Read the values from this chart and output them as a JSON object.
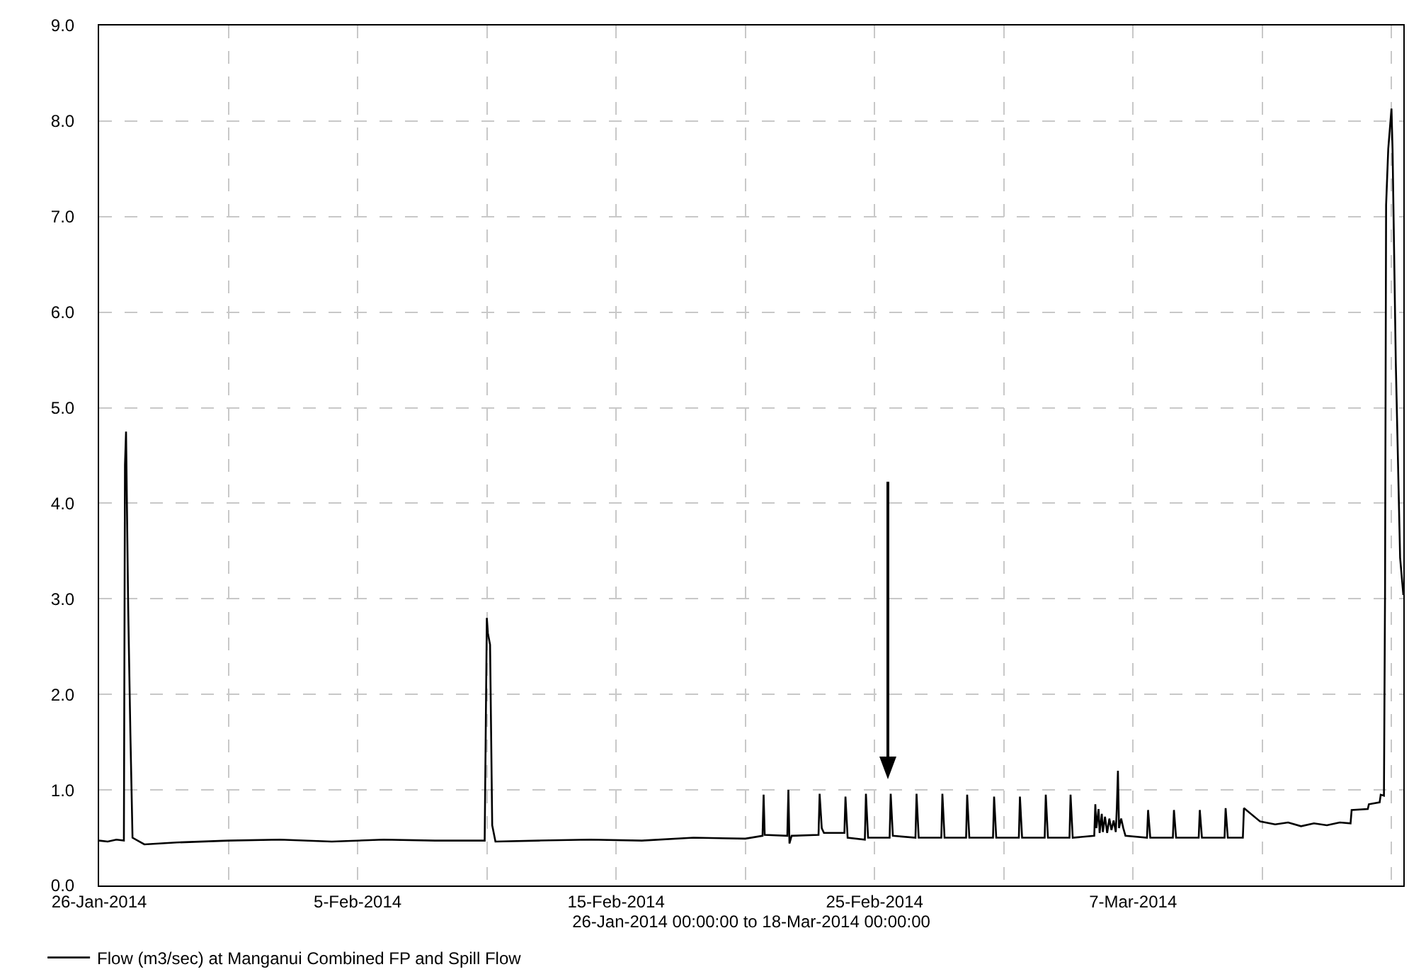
{
  "chart_data": {
    "type": "line",
    "xlabel": "26-Jan-2014 00:00:00 to 18-Mar-2014 00:00:00",
    "xlim": [
      "2014-01-26",
      "2014-03-17T11:00"
    ],
    "xticks": [
      {
        "value": "2014-01-26",
        "label": "26-Jan-2014"
      },
      {
        "value": "2014-01-31",
        "label": null
      },
      {
        "value": "2014-02-05",
        "label": "5-Feb-2014"
      },
      {
        "value": "2014-02-10",
        "label": null
      },
      {
        "value": "2014-02-15",
        "label": "15-Feb-2014"
      },
      {
        "value": "2014-02-20",
        "label": null
      },
      {
        "value": "2014-02-25",
        "label": "25-Feb-2014"
      },
      {
        "value": "2014-03-02",
        "label": null
      },
      {
        "value": "2014-03-07",
        "label": "7-Mar-2014"
      },
      {
        "value": "2014-03-12",
        "label": null
      },
      {
        "value": "2014-03-17",
        "label": null
      }
    ],
    "ylim": [
      0,
      9
    ],
    "yticks": [
      {
        "value": 0,
        "label": "0.0"
      },
      {
        "value": 1,
        "label": "1.0"
      },
      {
        "value": 2,
        "label": "2.0"
      },
      {
        "value": 3,
        "label": "3.0"
      },
      {
        "value": 4,
        "label": "4.0"
      },
      {
        "value": 5,
        "label": "5.0"
      },
      {
        "value": 6,
        "label": "6.0"
      },
      {
        "value": 7,
        "label": "7.0"
      },
      {
        "value": 8,
        "label": "8.0"
      },
      {
        "value": 9,
        "label": "9.0"
      }
    ],
    "grid": true,
    "legend": "bottom",
    "series": [
      {
        "name": "Flow (m3/sec) at Manganui Combined FP and Spill Flow",
        "color": "#000000",
        "x": [
          "2014-01-26T00:00",
          "2014-01-26T08:00",
          "2014-01-26T16:00",
          "2014-01-26T23:00",
          "2014-01-27T00:00",
          "2014-01-27T01:00",
          "2014-01-27T03:00",
          "2014-01-27T05:00",
          "2014-01-27T07:00",
          "2014-01-27T18:00",
          "2014-01-29T00:00",
          "2014-01-31T00:00",
          "2014-02-02T00:00",
          "2014-02-04T00:00",
          "2014-02-06T00:00",
          "2014-02-08T00:00",
          "2014-02-09T22:00",
          "2014-02-10T00:00",
          "2014-02-10T01:00",
          "2014-02-10T03:00",
          "2014-02-10T05:00",
          "2014-02-10T08:00",
          "2014-02-12T00:00",
          "2014-02-14T00:00",
          "2014-02-16T00:00",
          "2014-02-18T00:00",
          "2014-02-20T00:00",
          "2014-02-20T16:00",
          "2014-02-20T17:00",
          "2014-02-20T18:00",
          "2014-02-21T15:00",
          "2014-02-21T16:00",
          "2014-02-21T17:00",
          "2014-02-21T19:00",
          "2014-02-22T20:00",
          "2014-02-22T21:00",
          "2014-02-22T23:00",
          "2014-02-23T01:00",
          "2014-02-23T20:00",
          "2014-02-23T21:00",
          "2014-02-23T23:00",
          "2014-02-24T15:00",
          "2014-02-24T16:00",
          "2014-02-24T18:00",
          "2014-02-25T14:00",
          "2014-02-25T15:00",
          "2014-02-25T17:00",
          "2014-02-26T14:00",
          "2014-02-26T15:00",
          "2014-02-26T17:00",
          "2014-02-27T14:00",
          "2014-02-27T15:00",
          "2014-02-27T17:00",
          "2014-02-28T13:00",
          "2014-02-28T14:00",
          "2014-02-28T16:00",
          "2014-03-01T14:00",
          "2014-03-01T15:00",
          "2014-03-01T17:00",
          "2014-03-02T14:00",
          "2014-03-02T15:00",
          "2014-03-02T17:00",
          "2014-03-03T14:00",
          "2014-03-03T15:00",
          "2014-03-03T17:00",
          "2014-03-04T13:00",
          "2014-03-04T14:00",
          "2014-03-04T16:00",
          "2014-03-05T12:00",
          "2014-03-05T13:00",
          "2014-03-05T14:00",
          "2014-03-05T16:00",
          "2014-03-05T17:00",
          "2014-03-05T19:00",
          "2014-03-05T20:00",
          "2014-03-05T22:00",
          "2014-03-06T00:00",
          "2014-03-06T02:00",
          "2014-03-06T04:00",
          "2014-03-06T06:00",
          "2014-03-06T08:00",
          "2014-03-06T09:00",
          "2014-03-06T10:00",
          "2014-03-06T11:00",
          "2014-03-06T13:00",
          "2014-03-06T15:00",
          "2014-03-06T17:00",
          "2014-03-07T13:00",
          "2014-03-07T14:00",
          "2014-03-07T16:00",
          "2014-03-08T13:00",
          "2014-03-08T14:00",
          "2014-03-08T16:00",
          "2014-03-09T13:00",
          "2014-03-09T14:00",
          "2014-03-09T16:00",
          "2014-03-10T13:00",
          "2014-03-10T14:00",
          "2014-03-10T16:00",
          "2014-03-11T06:00",
          "2014-03-11T07:00",
          "2014-03-11T22:00",
          "2014-03-12T12:00",
          "2014-03-13T00:00",
          "2014-03-13T12:00",
          "2014-03-14T00:00",
          "2014-03-14T12:00",
          "2014-03-15T00:00",
          "2014-03-15T10:00",
          "2014-03-15T11:00",
          "2014-03-16T02:00",
          "2014-03-16T03:00",
          "2014-03-16T13:00",
          "2014-03-16T14:00",
          "2014-03-16T17:00",
          "2014-03-16T18:00",
          "2014-03-16T19:00",
          "2014-03-16T21:00",
          "2014-03-17T00:00",
          "2014-03-17T01:00",
          "2014-03-17T04:00",
          "2014-03-17T08:00",
          "2014-03-17T11:00"
        ],
        "values": [
          0.47,
          0.46,
          0.48,
          0.47,
          4.4,
          4.75,
          2.9,
          1.6,
          0.5,
          0.43,
          0.45,
          0.47,
          0.48,
          0.46,
          0.48,
          0.47,
          0.47,
          2.8,
          2.64,
          2.52,
          0.63,
          0.46,
          0.47,
          0.48,
          0.47,
          0.5,
          0.49,
          0.52,
          0.95,
          0.53,
          0.52,
          1.0,
          0.44,
          0.52,
          0.53,
          0.96,
          0.6,
          0.55,
          0.55,
          0.93,
          0.5,
          0.48,
          0.96,
          0.5,
          0.5,
          0.96,
          0.52,
          0.5,
          0.96,
          0.5,
          0.5,
          0.96,
          0.5,
          0.5,
          0.95,
          0.5,
          0.5,
          0.93,
          0.5,
          0.5,
          0.93,
          0.5,
          0.5,
          0.95,
          0.5,
          0.5,
          0.95,
          0.5,
          0.52,
          0.85,
          0.6,
          0.8,
          0.55,
          0.75,
          0.56,
          0.72,
          0.55,
          0.7,
          0.58,
          0.68,
          0.56,
          0.82,
          1.2,
          0.6,
          0.7,
          0.6,
          0.52,
          0.5,
          0.79,
          0.5,
          0.5,
          0.79,
          0.5,
          0.5,
          0.79,
          0.5,
          0.5,
          0.81,
          0.5,
          0.5,
          0.81,
          0.67,
          0.64,
          0.66,
          0.62,
          0.65,
          0.63,
          0.66,
          0.65,
          0.79,
          0.8,
          0.85,
          0.87,
          0.95,
          0.94,
          3.04,
          7.12,
          7.71,
          8.13,
          7.7,
          5.47,
          3.43,
          3.04
        ]
      }
    ]
  }
}
